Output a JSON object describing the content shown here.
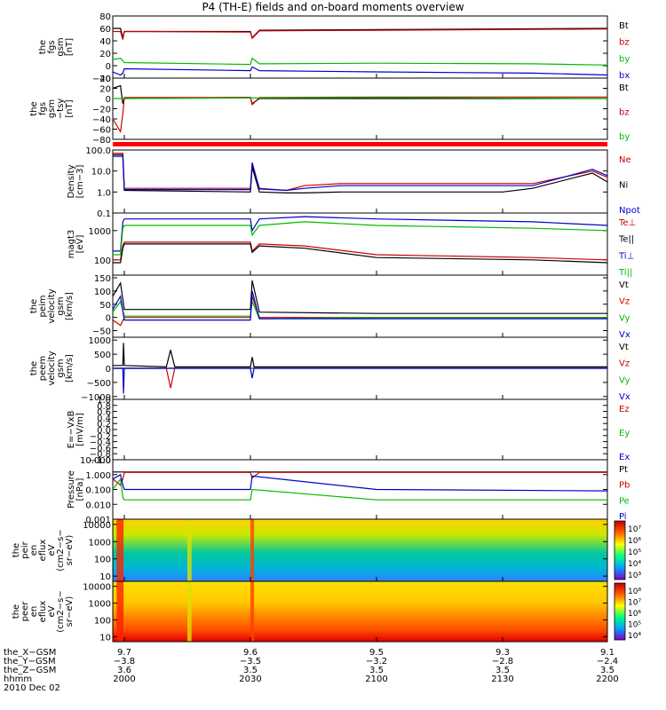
{
  "title": "P4 (TH-E) fields and on-board moments overview",
  "chart_data": [
    {
      "type": "line",
      "ylabel": [
        "the",
        "fgs",
        "gsm",
        "[nT]"
      ],
      "ylim": [
        -20,
        80
      ],
      "yticks": [
        "80",
        "60",
        "40",
        "20",
        "0",
        "−20"
      ],
      "series": [
        {
          "name": "Bt",
          "color": "#000000",
          "x": [
            1985,
            1995,
            1998,
            2000,
            2005,
            2030,
            2031,
            2035,
            2100,
            2200
          ],
          "y": [
            60,
            60,
            45,
            55,
            55,
            55,
            45,
            57,
            58,
            60
          ]
        },
        {
          "name": "bz",
          "color": "#cc0000",
          "x": [
            1985,
            1995,
            1998,
            2000,
            2005,
            2030,
            2031,
            2035,
            2100,
            2200
          ],
          "y": [
            55,
            55,
            42,
            55,
            55,
            54,
            44,
            56,
            57,
            59
          ]
        },
        {
          "name": "by",
          "color": "#00bb00",
          "x": [
            1985,
            1995,
            1998,
            2000,
            2030,
            2031,
            2035,
            2100,
            2150,
            2200
          ],
          "y": [
            10,
            12,
            8,
            5,
            2,
            12,
            3,
            4,
            3,
            1
          ]
        },
        {
          "name": "bx",
          "color": "#0000cc",
          "x": [
            1985,
            1995,
            1998,
            2000,
            2030,
            2031,
            2035,
            2100,
            2150,
            2200
          ],
          "y": [
            -10,
            -15,
            -12,
            -5,
            -8,
            -2,
            -8,
            -10,
            -12,
            -15
          ]
        }
      ]
    },
    {
      "type": "line",
      "ylabel": [
        "the",
        "fgs",
        "gsm",
        "−tsy",
        "[nT]"
      ],
      "ylim": [
        -80,
        40
      ],
      "yticks": [
        "40",
        "20",
        "0",
        "−20",
        "−40",
        "−60",
        "−80"
      ],
      "series": [
        {
          "name": "Bt",
          "color": "#000000",
          "x": [
            1985,
            1995,
            1998,
            2000,
            2030,
            2031,
            2035,
            2100,
            2200
          ],
          "y": [
            20,
            25,
            -10,
            0,
            2,
            -10,
            0,
            0,
            0
          ]
        },
        {
          "name": "bz",
          "color": "#cc0000",
          "x": [
            1985,
            1995,
            1998,
            2000,
            2030,
            2031,
            2035,
            2100,
            2200
          ],
          "y": [
            -40,
            -65,
            -30,
            2,
            2,
            -12,
            2,
            3,
            3
          ]
        },
        {
          "name": "by",
          "color": "#00bb00",
          "x": [
            1985,
            1998,
            2000,
            2100,
            2200
          ],
          "y": [
            0,
            0,
            0,
            2,
            0
          ]
        }
      ]
    },
    {
      "type": "line",
      "ylabel": [
        "Density",
        "[cm−3]"
      ],
      "scale": "log",
      "ylim": [
        0.1,
        100
      ],
      "yticks": [
        "100.0",
        "10.0",
        "1.0",
        "0.1"
      ],
      "series": [
        {
          "name": "Ne",
          "color": "#cc0000",
          "x": [
            1985,
            1998,
            2000,
            2030,
            2031,
            2035,
            2050,
            2060,
            2080,
            2100,
            2130,
            2150,
            2190,
            2200
          ],
          "y": [
            70,
            70,
            1.5,
            1.5,
            20,
            1.5,
            1.2,
            2,
            2.5,
            2.5,
            2.5,
            2.5,
            10,
            5
          ]
        },
        {
          "name": "Ni",
          "color": "#000000",
          "x": [
            1985,
            1998,
            2000,
            2030,
            2031,
            2035,
            2050,
            2060,
            2080,
            2100,
            2130,
            2150,
            2190,
            2200
          ],
          "y": [
            60,
            60,
            1.2,
            1,
            15,
            1,
            0.9,
            0.9,
            1,
            1,
            1,
            1.5,
            8,
            3
          ]
        },
        {
          "name": "Npot",
          "color": "#0000cc",
          "x": [
            1985,
            1998,
            2000,
            2030,
            2031,
            2035,
            2050,
            2060,
            2080,
            2100,
            2130,
            2150,
            2190,
            2200
          ],
          "y": [
            50,
            50,
            1.3,
            1.3,
            25,
            1.4,
            1.2,
            1.5,
            2,
            2,
            2,
            2,
            12,
            6
          ]
        }
      ]
    },
    {
      "type": "line",
      "ylabel": [
        "magt3",
        "[eV]"
      ],
      "scale": "log",
      "ylim": [
        30,
        4000
      ],
      "yticks": [
        "1000",
        "100"
      ],
      "series": [
        {
          "name": "Te⊥",
          "color": "#cc0000",
          "x": [
            1985,
            1995,
            1998,
            2000,
            2030,
            2031,
            2035,
            2060,
            2100,
            2150,
            2200
          ],
          "y": [
            100,
            100,
            300,
            400,
            400,
            200,
            350,
            300,
            150,
            120,
            100
          ]
        },
        {
          "name": "Te||",
          "color": "#000000",
          "x": [
            1985,
            1995,
            1998,
            2000,
            2030,
            2031,
            2035,
            2060,
            2100,
            2150,
            2200
          ],
          "y": [
            80,
            80,
            250,
            350,
            350,
            180,
            300,
            250,
            120,
            100,
            80
          ]
        },
        {
          "name": "Ti⊥",
          "color": "#0000cc",
          "x": [
            1985,
            1995,
            1998,
            2000,
            2030,
            2031,
            2035,
            2060,
            2100,
            2150,
            2200
          ],
          "y": [
            200,
            200,
            2000,
            2500,
            2500,
            1000,
            2500,
            3000,
            2500,
            2000,
            1500
          ]
        },
        {
          "name": "Ti||",
          "color": "#00bb00",
          "x": [
            1985,
            1995,
            1998,
            2000,
            2030,
            2031,
            2035,
            2060,
            2100,
            2150,
            2200
          ],
          "y": [
            150,
            150,
            1200,
            1500,
            1500,
            700,
            1500,
            2000,
            1500,
            1200,
            1000
          ]
        }
      ]
    },
    {
      "type": "line",
      "ylabel": [
        "the",
        "peim",
        "velocity",
        "gsm",
        "[km/s]"
      ],
      "ylim": [
        -75,
        160
      ],
      "yticks": [
        "150",
        "100",
        "50",
        "0",
        "−50"
      ],
      "series": [
        {
          "name": "Vt",
          "color": "#000000",
          "x": [
            1985,
            1995,
            2000,
            2030,
            2031,
            2035,
            2100,
            2200
          ],
          "y": [
            80,
            130,
            30,
            30,
            140,
            20,
            15,
            15
          ]
        },
        {
          "name": "Vz",
          "color": "#cc0000",
          "x": [
            1985,
            1995,
            2000,
            2030,
            2031,
            2035,
            2100,
            2200
          ],
          "y": [
            -10,
            -30,
            0,
            0,
            80,
            0,
            0,
            0
          ]
        },
        {
          "name": "Vy",
          "color": "#00bb00",
          "x": [
            1985,
            1995,
            2000,
            2030,
            2031,
            2035,
            2100,
            2200
          ],
          "y": [
            20,
            60,
            5,
            5,
            60,
            -5,
            0,
            0
          ]
        },
        {
          "name": "Vx",
          "color": "#0000cc",
          "x": [
            1985,
            1995,
            2000,
            2030,
            2031,
            2035,
            2100,
            2200
          ],
          "y": [
            30,
            80,
            -10,
            -10,
            100,
            -5,
            -5,
            -5
          ]
        }
      ]
    },
    {
      "type": "line",
      "ylabel": [
        "the",
        "peem",
        "velocity",
        "gsm",
        "[km/s]"
      ],
      "ylim": [
        -1100,
        1100
      ],
      "yticks": [
        "1000",
        "500",
        "0",
        "−500",
        "−1000"
      ],
      "series": [
        {
          "name": "Vt",
          "color": "#000000",
          "x": [
            1985,
            1998,
            1999,
            2000,
            2010,
            2011,
            2012,
            2030,
            2031,
            2032,
            2100,
            2200
          ],
          "y": [
            100,
            100,
            900,
            100,
            50,
            650,
            50,
            50,
            400,
            50,
            50,
            50
          ]
        },
        {
          "name": "Vz",
          "color": "#cc0000",
          "x": [
            1985,
            1998,
            2010,
            2011,
            2012,
            2030,
            2100,
            2200
          ],
          "y": [
            0,
            0,
            0,
            -700,
            0,
            0,
            0,
            0
          ]
        },
        {
          "name": "Vy",
          "color": "#00bb00",
          "x": [
            1985,
            1998,
            2030,
            2100,
            2200
          ],
          "y": [
            0,
            0,
            0,
            0,
            0
          ]
        },
        {
          "name": "Vx",
          "color": "#0000cc",
          "x": [
            1985,
            1998,
            1999,
            2000,
            2030,
            2031,
            2032,
            2100,
            2200
          ],
          "y": [
            0,
            0,
            -900,
            0,
            0,
            -350,
            0,
            0,
            0
          ]
        }
      ]
    },
    {
      "type": "line",
      "ylabel": [
        "E=−VxB",
        "[mV/m]"
      ],
      "ylim": [
        -1,
        1
      ],
      "yticks": [
        "1.0",
        "0.8",
        "0.6",
        "0.4",
        "0.2",
        "0.0",
        "−0.2",
        "−0.4",
        "−0.6",
        "−0.8",
        "−1.0"
      ],
      "series": [
        {
          "name": "Ez",
          "color": "#cc0000",
          "x": [],
          "y": []
        },
        {
          "name": "Ey",
          "color": "#00bb00",
          "x": [],
          "y": []
        },
        {
          "name": "Ex",
          "color": "#0000cc",
          "x": [],
          "y": []
        }
      ]
    },
    {
      "type": "line",
      "ylabel": [
        "Pressure",
        "[nPa]"
      ],
      "scale": "log",
      "ylim": [
        0.001,
        10
      ],
      "yticks": [
        "10.000",
        "1.000",
        "0.100",
        "0.010",
        "0.001"
      ],
      "series": [
        {
          "name": "Pt",
          "color": "#000000",
          "x": [
            1985,
            1998,
            2000,
            2200
          ],
          "y": [
            1.5,
            1.5,
            1.5,
            1.5
          ]
        },
        {
          "name": "Pb",
          "color": "#cc0000",
          "x": [
            1985,
            1995,
            1998,
            2000,
            2030,
            2031,
            2035,
            2200
          ],
          "y": [
            0.5,
            0.2,
            0.5,
            1.4,
            1.4,
            0.6,
            1.4,
            1.4
          ]
        },
        {
          "name": "Pe",
          "color": "#00bb00",
          "x": [
            1985,
            1995,
            1998,
            2000,
            2030,
            2031,
            2100,
            2200
          ],
          "y": [
            0.1,
            0.5,
            0.03,
            0.02,
            0.02,
            0.1,
            0.02,
            0.02
          ]
        },
        {
          "name": "Pi",
          "color": "#0000cc",
          "x": [
            1985,
            1995,
            1998,
            2000,
            2030,
            2031,
            2100,
            2200
          ],
          "y": [
            0.5,
            1,
            0.2,
            0.1,
            0.1,
            0.8,
            0.1,
            0.08
          ]
        }
      ]
    },
    {
      "type": "heatmap",
      "ylabel": [
        "the",
        "peir",
        "en",
        "eflux",
        "eV",
        "(cm2−s−",
        "sr−eV)"
      ],
      "scale": "log",
      "ylim": [
        5,
        20000
      ],
      "yticks": [
        "10000",
        "1000",
        "100",
        "10"
      ],
      "colorbar": {
        "ticks": [
          "10⁷",
          "10⁶",
          "10⁵",
          "10⁴",
          "10³"
        ]
      }
    },
    {
      "type": "heatmap",
      "ylabel": [
        "the",
        "peer",
        "en",
        "eflux",
        "eV",
        "(cm2−s−",
        "sr−eV)"
      ],
      "scale": "log",
      "ylim": [
        5,
        20000
      ],
      "yticks": [
        "10000",
        "1000",
        "100",
        "10"
      ],
      "colorbar": {
        "ticks": [
          "10⁸",
          "10⁷",
          "10⁶",
          "10⁵",
          "10⁴"
        ]
      }
    }
  ],
  "time_axis": {
    "xlim": [
      1985,
      2200
    ],
    "ticks": [
      2000,
      2030,
      2100,
      2130,
      2200
    ],
    "tick_positions_min": [
      2000,
      2030,
      2060,
      2090,
      2120
    ],
    "rows": [
      {
        "label": "the_X−GSM",
        "values": [
          "9.7",
          "9.6",
          "9.5",
          "9.3",
          "9.1"
        ]
      },
      {
        "label": "the_Y−GSM",
        "values": [
          "−3.8",
          "−3.5",
          "−3.2",
          "−2.8",
          "−2.4"
        ]
      },
      {
        "label": "the_Z−GSM",
        "values": [
          "3.6",
          "3.5",
          "3.5",
          "3.5",
          "3.5"
        ]
      },
      {
        "label": "hhmm",
        "values": [
          "2000",
          "2030",
          "2100",
          "2130",
          "2200"
        ]
      }
    ],
    "date": "2010 Dec 02"
  }
}
